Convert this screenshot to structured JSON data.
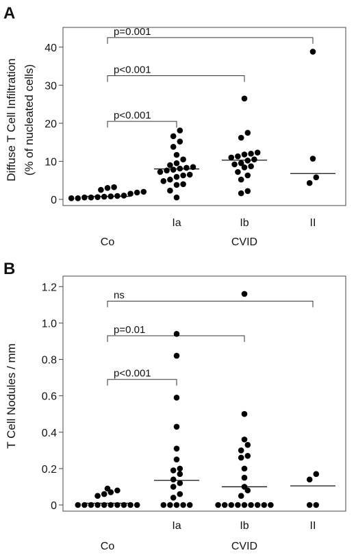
{
  "chart_data": [
    {
      "type": "scatter",
      "panel_label": "A",
      "ylabel": [
        "Diffuse T Cell Infiltration",
        "(% of nucleated cells)"
      ],
      "ylim": [
        0,
        45
      ],
      "yticks": [
        0,
        10,
        20,
        30,
        40
      ],
      "ytick_labels": [
        "0",
        "10",
        "20",
        "30",
        "40"
      ],
      "categories": [
        "Co",
        "Ia",
        "Ib",
        "II"
      ],
      "tick_labels": [
        "",
        "Ia",
        "Ib",
        "II"
      ],
      "group_labels": [
        {
          "text": "Co",
          "at": "Co"
        },
        {
          "text": "CVID",
          "at": "Ib"
        }
      ],
      "medians": [
        0.8,
        8.0,
        10.3,
        6.8
      ],
      "series": [
        {
          "category": "Co",
          "values": [
            0.3,
            0.3,
            0.5,
            0.5,
            0.6,
            0.7,
            0.8,
            0.9,
            1.0,
            1.5,
            1.8,
            2.0,
            2.5,
            3.0,
            3.2
          ]
        },
        {
          "category": "Ia",
          "values": [
            0.5,
            2.3,
            3.8,
            4.0,
            4.8,
            5.2,
            5.9,
            6.3,
            6.5,
            7.2,
            7.6,
            7.8,
            8.1,
            8.3,
            8.5,
            9.0,
            9.5,
            10.5,
            11.7,
            13.8,
            15.2,
            16.6,
            18.1
          ]
        },
        {
          "category": "Ib",
          "values": [
            1.6,
            2.2,
            5.2,
            6.3,
            7.2,
            8.4,
            8.7,
            9.2,
            9.5,
            10.2,
            10.5,
            11.0,
            11.3,
            11.8,
            12.0,
            12.3,
            16.2,
            17.5,
            26.5
          ]
        },
        {
          "category": "II",
          "values": [
            4.3,
            5.8,
            10.7,
            38.8
          ]
        }
      ],
      "comparisons": [
        {
          "from": "Co",
          "to": "Ia",
          "label": "p<0.001",
          "level": 20.5
        },
        {
          "from": "Co",
          "to": "Ib",
          "label": "p<0.001",
          "level": 32.5
        },
        {
          "from": "Co",
          "to": "II",
          "label": "p=0.001",
          "level": 42.5
        }
      ]
    },
    {
      "type": "scatter",
      "panel_label": "B",
      "ylabel": [
        "T Cell Nodules / mm"
      ],
      "ylim": [
        0,
        1.25
      ],
      "yticks": [
        0,
        0.2,
        0.4,
        0.6,
        0.8,
        1.0,
        1.2
      ],
      "ytick_labels": [
        "0",
        "0.2",
        "0.4",
        "0.6",
        "0.8",
        "1.0",
        "1.2"
      ],
      "categories": [
        "Co",
        "Ia",
        "Ib",
        "II"
      ],
      "tick_labels": [
        "",
        "Ia",
        "Ib",
        "II"
      ],
      "group_labels": [
        {
          "text": "Co",
          "at": "Co"
        },
        {
          "text": "CVID",
          "at": "Ib"
        }
      ],
      "medians": [
        0.01,
        0.135,
        0.1,
        0.105
      ],
      "series": [
        {
          "category": "Co",
          "values": [
            0,
            0,
            0,
            0,
            0,
            0,
            0,
            0,
            0,
            0,
            0.05,
            0.06,
            0.07,
            0.08,
            0.09
          ]
        },
        {
          "category": "Ia",
          "values": [
            0,
            0,
            0,
            0,
            0,
            0.04,
            0.06,
            0.1,
            0.12,
            0.14,
            0.17,
            0.19,
            0.2,
            0.25,
            0.31,
            0.43,
            0.59,
            0.82,
            0.94
          ]
        },
        {
          "category": "Ib",
          "values": [
            0,
            0,
            0,
            0,
            0,
            0,
            0,
            0,
            0,
            0.05,
            0.08,
            0.1,
            0.15,
            0.2,
            0.26,
            0.27,
            0.3,
            0.33,
            0.36,
            0.5,
            1.16
          ]
        },
        {
          "category": "II",
          "values": [
            0,
            0,
            0.14,
            0.17
          ]
        }
      ],
      "comparisons": [
        {
          "from": "Co",
          "to": "Ia",
          "label": "p<0.001",
          "level": 0.69
        },
        {
          "from": "Co",
          "to": "Ib",
          "label": "p=0.01",
          "level": 0.93
        },
        {
          "from": "Co",
          "to": "II",
          "label": "ns",
          "level": 1.12
        }
      ]
    }
  ]
}
